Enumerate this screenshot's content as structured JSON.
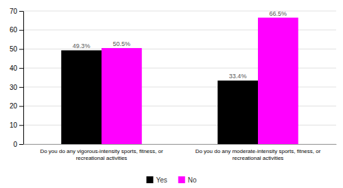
{
  "chart_data": {
    "type": "bar",
    "categories": [
      "Do you do any vigorous-intensity sports, fitness, or\nrecreational activities",
      "Do you do any moderate-intensity sports, fitness, or\nrecreational activities"
    ],
    "series": [
      {
        "name": "Yes",
        "color": "#000000",
        "values": [
          49.3,
          33.4
        ],
        "value_labels": [
          "49.3%",
          "33.4%"
        ]
      },
      {
        "name": "No",
        "color": "#FF00FF",
        "values": [
          50.5,
          66.5
        ],
        "value_labels": [
          "50.5%",
          "66.5%"
        ]
      }
    ],
    "ylim": [
      0,
      70
    ],
    "yticks": [
      0,
      10,
      20,
      30,
      40,
      50,
      60,
      70
    ],
    "grid": true,
    "legend": "bottom",
    "data_labels": true
  }
}
